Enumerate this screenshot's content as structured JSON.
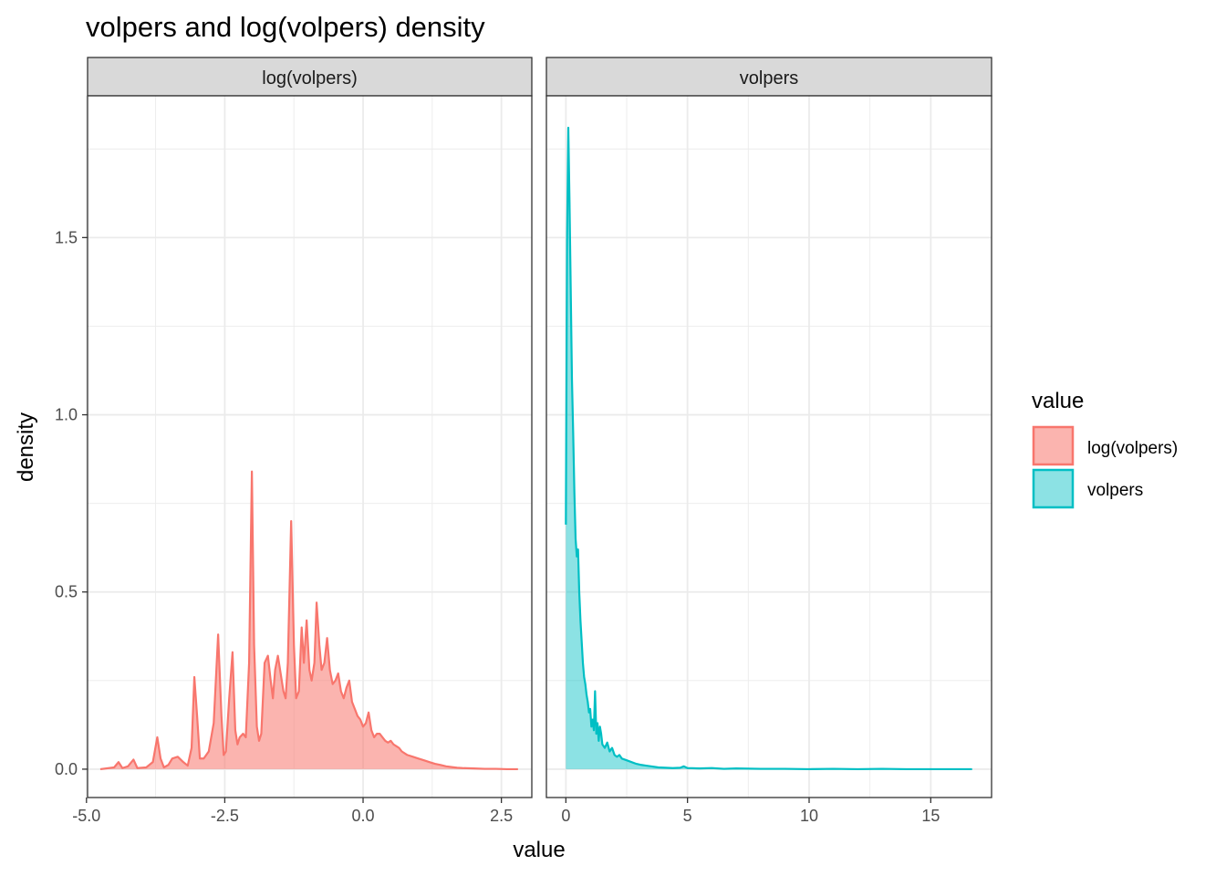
{
  "chart_data": {
    "type": "area",
    "title": "volpers and log(volpers) density",
    "xlabel": "value",
    "ylabel": "density",
    "ylim": [
      -0.08,
      1.9
    ],
    "yticks": [
      0.0,
      0.5,
      1.0,
      1.5
    ],
    "ytick_labels": [
      "0.0",
      "0.5",
      "1.0",
      "1.5"
    ],
    "grid": true,
    "legend": {
      "title": "value",
      "placement": "right",
      "entries": [
        "log(volpers)",
        "volpers"
      ]
    },
    "panels": [
      {
        "strip": "log(volpers)",
        "color": "#F8766D",
        "fill": "#F8766D",
        "xlim": [
          -4.98,
          3.05
        ],
        "xticks": [
          -5.0,
          -2.5,
          0.0,
          2.5
        ],
        "xtick_labels": [
          "-5.0",
          "-2.5",
          "0.0",
          "2.5"
        ],
        "series": [
          {
            "name": "log(volpers)",
            "x": [
              -4.75,
              -4.5,
              -4.42,
              -4.35,
              -4.25,
              -4.15,
              -4.08,
              -3.92,
              -3.8,
              -3.72,
              -3.66,
              -3.6,
              -3.52,
              -3.45,
              -3.35,
              -3.25,
              -3.17,
              -3.1,
              -3.05,
              -3.0,
              -2.95,
              -2.88,
              -2.79,
              -2.7,
              -2.62,
              -2.56,
              -2.52,
              -2.48,
              -2.42,
              -2.36,
              -2.31,
              -2.27,
              -2.23,
              -2.17,
              -2.12,
              -2.06,
              -2.01,
              -1.97,
              -1.92,
              -1.88,
              -1.84,
              -1.78,
              -1.72,
              -1.67,
              -1.63,
              -1.59,
              -1.54,
              -1.49,
              -1.44,
              -1.4,
              -1.36,
              -1.3,
              -1.25,
              -1.21,
              -1.16,
              -1.11,
              -1.07,
              -1.02,
              -0.97,
              -0.93,
              -0.88,
              -0.84,
              -0.79,
              -0.75,
              -0.7,
              -0.65,
              -0.6,
              -0.55,
              -0.5,
              -0.45,
              -0.4,
              -0.35,
              -0.3,
              -0.25,
              -0.2,
              -0.15,
              -0.1,
              -0.05,
              0.0,
              0.05,
              0.1,
              0.15,
              0.2,
              0.25,
              0.3,
              0.35,
              0.4,
              0.45,
              0.5,
              0.55,
              0.6,
              0.65,
              0.7,
              0.8,
              0.9,
              1.0,
              1.1,
              1.2,
              1.3,
              1.4,
              1.5,
              1.6,
              1.7,
              1.8,
              2.0,
              2.2,
              2.4,
              2.6,
              2.8
            ],
            "y": [
              0.0,
              0.005,
              0.02,
              0.003,
              0.008,
              0.027,
              0.003,
              0.005,
              0.02,
              0.09,
              0.03,
              0.005,
              0.012,
              0.03,
              0.035,
              0.02,
              0.01,
              0.06,
              0.26,
              0.15,
              0.03,
              0.03,
              0.05,
              0.13,
              0.38,
              0.15,
              0.04,
              0.05,
              0.2,
              0.33,
              0.11,
              0.07,
              0.09,
              0.1,
              0.09,
              0.3,
              0.84,
              0.35,
              0.12,
              0.08,
              0.1,
              0.3,
              0.32,
              0.25,
              0.2,
              0.28,
              0.32,
              0.27,
              0.22,
              0.2,
              0.3,
              0.7,
              0.35,
              0.2,
              0.22,
              0.4,
              0.3,
              0.42,
              0.28,
              0.25,
              0.3,
              0.47,
              0.35,
              0.28,
              0.3,
              0.37,
              0.28,
              0.24,
              0.25,
              0.27,
              0.22,
              0.2,
              0.23,
              0.25,
              0.19,
              0.17,
              0.15,
              0.14,
              0.12,
              0.13,
              0.16,
              0.11,
              0.09,
              0.1,
              0.1,
              0.09,
              0.08,
              0.075,
              0.08,
              0.07,
              0.065,
              0.06,
              0.05,
              0.04,
              0.035,
              0.03,
              0.025,
              0.02,
              0.015,
              0.012,
              0.008,
              0.006,
              0.004,
              0.003,
              0.002,
              0.001,
              0.001,
              0.0,
              0.0
            ]
          }
        ]
      },
      {
        "strip": "volpers",
        "color": "#00BFC4",
        "fill": "#00BFC4",
        "xlim": [
          -0.8,
          17.5
        ],
        "xticks": [
          0,
          5,
          10,
          15
        ],
        "xtick_labels": [
          "0",
          "5",
          "10",
          "15"
        ],
        "series": [
          {
            "name": "volpers",
            "x": [
              0.0,
              0.05,
              0.1,
              0.15,
              0.2,
              0.25,
              0.3,
              0.35,
              0.4,
              0.45,
              0.5,
              0.55,
              0.6,
              0.65,
              0.7,
              0.75,
              0.8,
              0.85,
              0.9,
              0.95,
              1.0,
              1.05,
              1.1,
              1.15,
              1.2,
              1.25,
              1.3,
              1.35,
              1.4,
              1.45,
              1.5,
              1.6,
              1.7,
              1.8,
              1.9,
              2.0,
              2.1,
              2.2,
              2.3,
              2.5,
              2.7,
              2.9,
              3.1,
              3.3,
              3.5,
              3.8,
              4.1,
              4.4,
              4.7,
              4.85,
              5.0,
              5.5,
              6.0,
              6.5,
              7.0,
              8.0,
              9.0,
              10.0,
              11.0,
              12.0,
              13.0,
              14.0,
              15.0,
              16.0,
              16.7
            ],
            "y": [
              0.69,
              1.5,
              1.81,
              1.6,
              1.35,
              1.1,
              0.95,
              0.78,
              0.65,
              0.6,
              0.62,
              0.5,
              0.42,
              0.36,
              0.3,
              0.26,
              0.24,
              0.21,
              0.19,
              0.16,
              0.17,
              0.12,
              0.14,
              0.11,
              0.22,
              0.1,
              0.13,
              0.08,
              0.12,
              0.1,
              0.07,
              0.06,
              0.075,
              0.05,
              0.06,
              0.04,
              0.035,
              0.04,
              0.03,
              0.025,
              0.02,
              0.015,
              0.012,
              0.01,
              0.008,
              0.005,
              0.004,
              0.003,
              0.004,
              0.008,
              0.003,
              0.002,
              0.003,
              0.001,
              0.002,
              0.001,
              0.001,
              0.0,
              0.001,
              0.0,
              0.001,
              0.0,
              0.0,
              0.0,
              0.0
            ]
          }
        ]
      }
    ]
  }
}
